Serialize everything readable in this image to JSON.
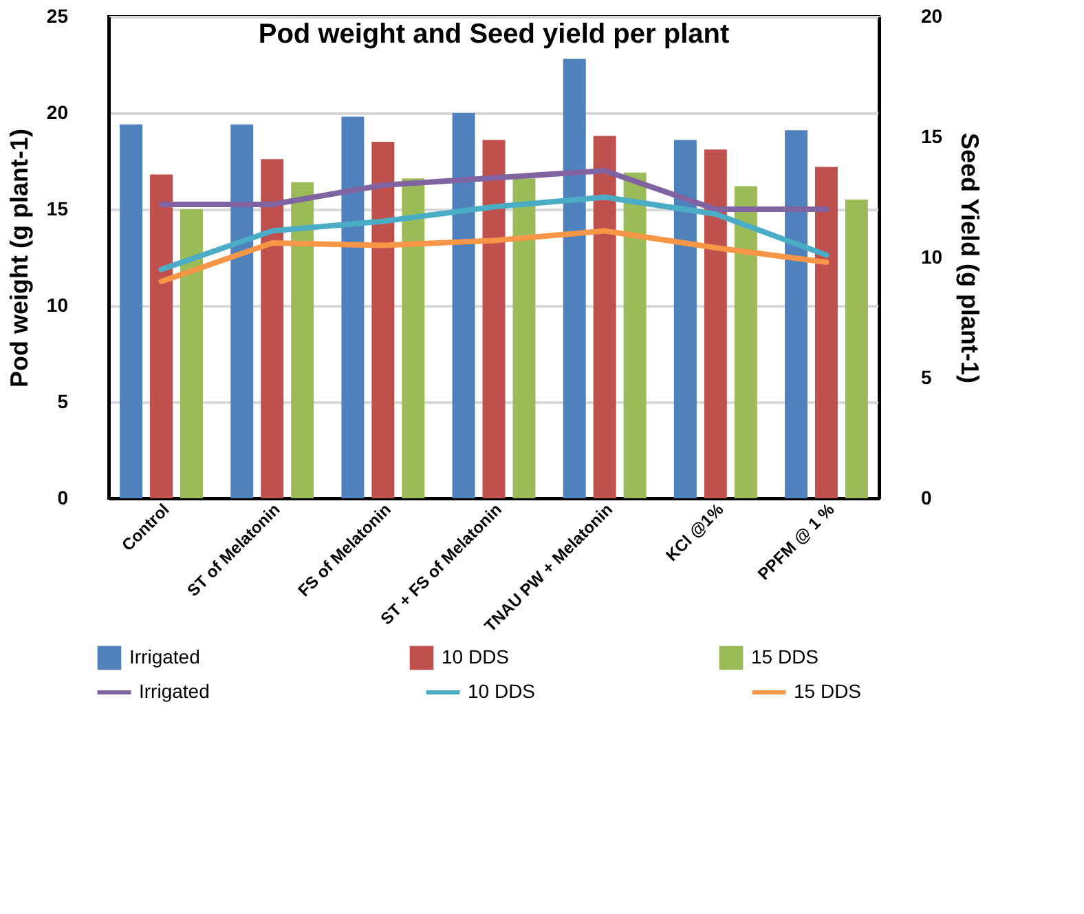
{
  "chart_data": {
    "type": "bar",
    "title": "Pod  weight and Seed  yield per plant",
    "ylabel": "Pod weight (g plant-1)",
    "y2label": "Seed Yield (g plant-1)",
    "categories": [
      "Control",
      "ST of Melatonin",
      "FS of Melatonin",
      "ST + FS of Melatonin",
      "TNAU PW + Melatonin",
      "KCl @1%",
      "PPFM @ 1 %"
    ],
    "series": [
      {
        "name": "Irrigated",
        "color": "#4f81bd",
        "values": [
          19.4,
          19.4,
          19.8,
          20.0,
          22.8,
          18.6,
          19.1
        ]
      },
      {
        "name": "10 DDS",
        "color": "#c0504d",
        "values": [
          16.8,
          17.6,
          18.5,
          18.6,
          18.8,
          18.1,
          17.2
        ]
      },
      {
        "name": "15 DDS",
        "color": "#9bbb59",
        "values": [
          15.0,
          16.4,
          16.6,
          16.6,
          16.9,
          16.2,
          15.5
        ]
      },
      {
        "name": "Irrigated",
        "color": "#8064a2",
        "type": "line",
        "axis": "y2",
        "values": [
          12.2,
          12.2,
          13.0,
          13.3,
          13.6,
          12.0,
          12.0
        ]
      },
      {
        "name": "10 DDS",
        "color": "#4bacc6",
        "type": "line",
        "axis": "y2",
        "values": [
          9.5,
          11.1,
          11.5,
          12.1,
          12.5,
          11.8,
          10.1
        ]
      },
      {
        "name": "15 DDS",
        "color": "#f79646",
        "type": "line",
        "axis": "y2",
        "values": [
          9.0,
          10.6,
          10.5,
          10.7,
          11.1,
          10.4,
          9.8
        ]
      }
    ],
    "ylim": [
      0,
      25
    ],
    "yticks": [
      0,
      5,
      10,
      15,
      20,
      25
    ],
    "y2lim": [
      0,
      20
    ],
    "y2ticks": [
      0,
      5,
      10,
      15,
      20
    ],
    "grid": "y",
    "legend": "bottom"
  }
}
